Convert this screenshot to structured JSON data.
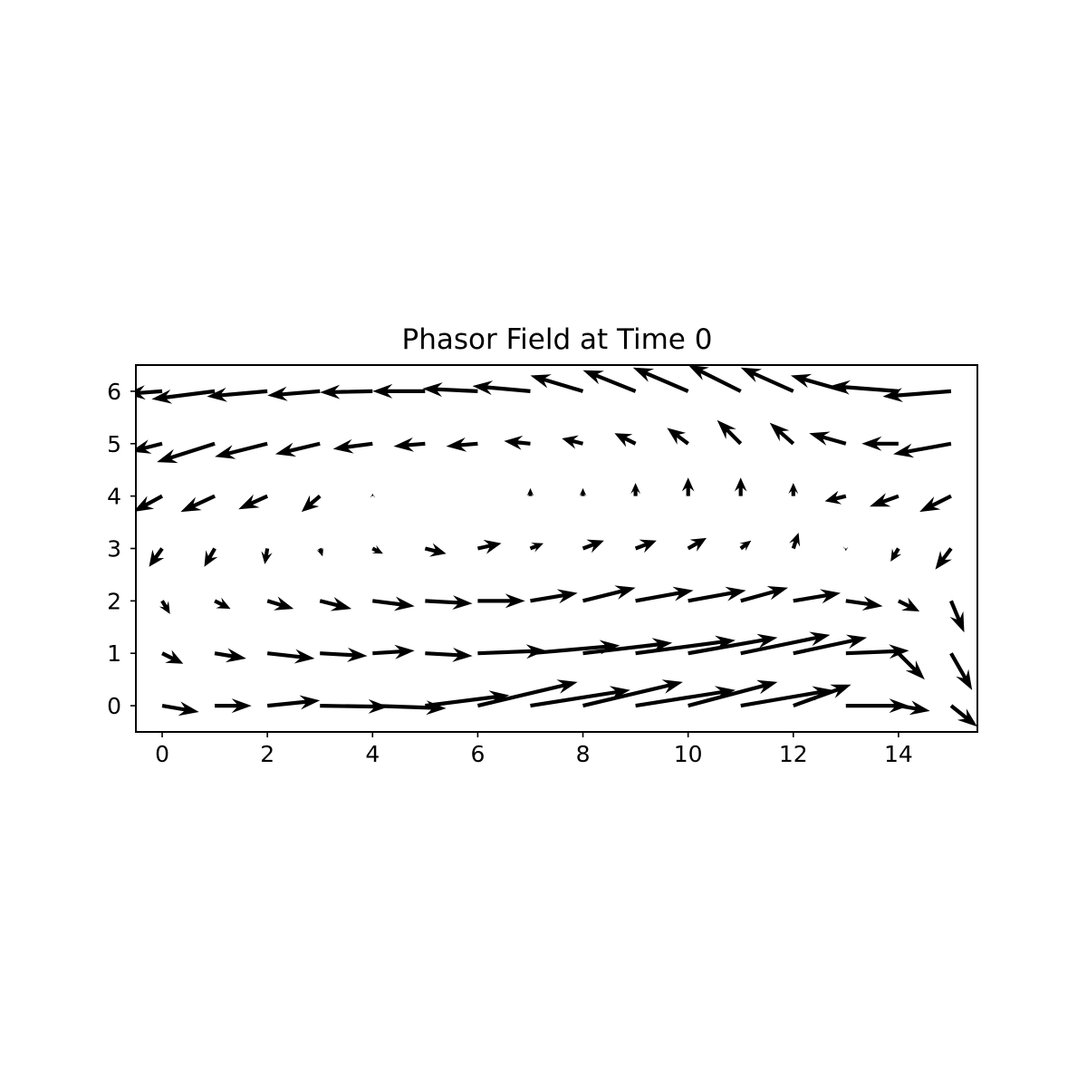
{
  "chart_data": {
    "type": "quiver",
    "title": "Phasor Field at Time 0",
    "xlabel": "",
    "ylabel": "",
    "xlim": [
      -0.5,
      15.5
    ],
    "ylim": [
      -0.5,
      6.5
    ],
    "xticks": [
      0,
      2,
      4,
      6,
      8,
      10,
      12,
      14
    ],
    "yticks": [
      0,
      1,
      2,
      3,
      4,
      5,
      6
    ],
    "grid": false,
    "arrow_color": "#000000",
    "units_note": "arrow components u,v in x-axis data units",
    "rows": [
      {
        "y": 0,
        "u": [
          0.7,
          0.7,
          1.0,
          1.3,
          1.4,
          1.6,
          1.9,
          1.9,
          1.9,
          1.9,
          1.7,
          1.75,
          1.1,
          1.2,
          0.6,
          0.5
        ],
        "v": [
          -0.12,
          0.0,
          0.1,
          -0.02,
          -0.05,
          0.2,
          0.45,
          0.3,
          0.45,
          0.3,
          0.45,
          0.3,
          0.4,
          0.0,
          -0.1,
          -0.4
        ]
      },
      {
        "y": 1,
        "u": [
          0.4,
          0.6,
          0.9,
          0.9,
          0.8,
          0.9,
          1.3,
          1.7,
          1.7,
          1.9,
          1.7,
          1.7,
          1.4,
          1.2,
          0.5,
          0.4
        ],
        "v": [
          -0.2,
          -0.1,
          -0.1,
          -0.05,
          0.05,
          -0.05,
          0.05,
          0.15,
          0.2,
          0.25,
          0.3,
          0.35,
          0.3,
          0.05,
          -0.5,
          -0.7
        ]
      },
      {
        "y": 2,
        "u": [
          0.15,
          0.3,
          0.5,
          0.6,
          0.8,
          0.9,
          0.9,
          0.9,
          1.0,
          1.1,
          1.1,
          0.9,
          0.9,
          0.7,
          0.4,
          0.25
        ],
        "v": [
          -0.25,
          -0.15,
          -0.15,
          -0.15,
          -0.1,
          -0.05,
          0.0,
          0.15,
          0.25,
          0.2,
          0.2,
          0.25,
          0.15,
          -0.1,
          -0.2,
          -0.6
        ]
      },
      {
        "y": 3,
        "u": [
          -0.25,
          -0.2,
          -0.05,
          0.05,
          0.2,
          0.4,
          0.45,
          0.25,
          0.4,
          0.4,
          0.35,
          0.2,
          0.1,
          0.0,
          -0.15,
          -0.3
        ],
        "v": [
          -0.35,
          -0.35,
          -0.3,
          -0.15,
          -0.1,
          -0.1,
          0.1,
          0.1,
          0.15,
          0.15,
          0.2,
          0.15,
          0.3,
          -0.05,
          -0.25,
          -0.4
        ]
      },
      {
        "y": 4,
        "u": [
          -0.55,
          -0.65,
          -0.55,
          -0.35,
          0.0,
          0.0,
          0.0,
          0.0,
          0.0,
          0.0,
          0.0,
          0.0,
          0.0,
          -0.4,
          -0.55,
          -0.6
        ],
        "v": [
          -0.3,
          -0.3,
          -0.25,
          -0.3,
          0.05,
          0.0,
          0.0,
          0.15,
          0.15,
          0.25,
          0.35,
          0.35,
          0.25,
          -0.1,
          -0.2,
          -0.3
        ]
      },
      {
        "y": 5,
        "u": [
          -0.6,
          -1.1,
          -1.0,
          -0.85,
          -0.75,
          -0.6,
          -0.6,
          -0.5,
          -0.4,
          -0.4,
          -0.4,
          -0.45,
          -0.45,
          -0.7,
          -0.7,
          -1.1
        ],
        "v": [
          -0.15,
          -0.35,
          -0.25,
          -0.2,
          -0.1,
          -0.05,
          -0.05,
          0.05,
          0.1,
          0.2,
          0.3,
          0.45,
          0.4,
          0.2,
          0.0,
          -0.2
        ]
      },
      {
        "y": 6,
        "u": [
          -0.7,
          -1.2,
          -1.15,
          -1.0,
          -1.0,
          -1.0,
          -1.05,
          -1.1,
          -1.0,
          -1.0,
          -1.05,
          -1.0,
          -1.0,
          -1.05,
          -1.3,
          -1.3
        ],
        "v": [
          -0.05,
          -0.15,
          -0.1,
          -0.08,
          -0.02,
          0.0,
          0.05,
          0.1,
          0.3,
          0.4,
          0.45,
          0.5,
          0.45,
          0.3,
          0.1,
          -0.1
        ]
      }
    ]
  }
}
